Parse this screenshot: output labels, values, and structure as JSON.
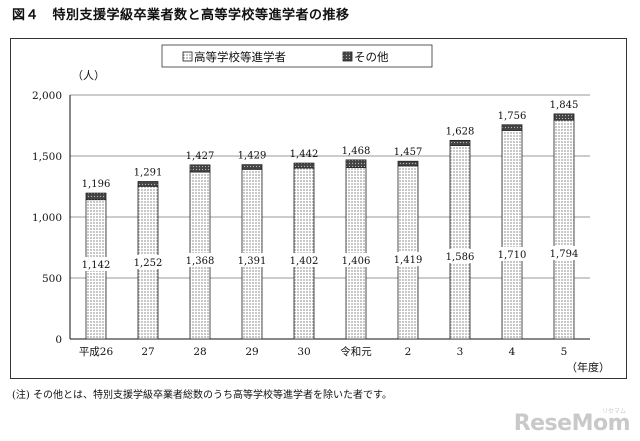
{
  "figure": {
    "title": "図４　特別支援学級卒業者数と高等学校等進学者の推移",
    "note": "(注) その他とは、特別支援学級卒業者総数のうち高等学校等進学者を除いた者です。",
    "watermark": "ReseMom",
    "watermark_sub": "リセマム"
  },
  "chart_data": {
    "type": "bar",
    "stacked": true,
    "categories": [
      "平成26",
      "27",
      "28",
      "29",
      "30",
      "令和元",
      "2",
      "3",
      "4",
      "5"
    ],
    "series": [
      {
        "name": "高等学校等進学者",
        "values": [
          1142,
          1252,
          1368,
          1391,
          1402,
          1406,
          1419,
          1586,
          1710,
          1794
        ],
        "pattern": "dots"
      },
      {
        "name": "その他",
        "values": [
          54,
          39,
          59,
          38,
          40,
          62,
          38,
          42,
          46,
          51
        ],
        "pattern": "dark"
      }
    ],
    "totals": [
      1196,
      1291,
      1427,
      1429,
      1442,
      1468,
      1457,
      1628,
      1756,
      1845
    ],
    "total_labels": [
      "1,196",
      "1,291",
      "1,427",
      "1,429",
      "1,442",
      "1,468",
      "1,457",
      "1,628",
      "1,756",
      "1,845"
    ],
    "inner_labels": [
      "1,142",
      "1,252",
      "1,368",
      "1,391",
      "1,402",
      "1,406",
      "1,419",
      "1,586",
      "1,710",
      "1,794"
    ],
    "y_ticks": [
      0,
      500,
      1000,
      1500,
      2000
    ],
    "y_tick_labels": [
      "0",
      "500",
      "1,000",
      "1,500",
      "2,000"
    ],
    "ylim": [
      0,
      2000
    ],
    "ylabel": "（人）",
    "xlabel": "（年度）",
    "legend_position": "top-center",
    "grid": true
  }
}
